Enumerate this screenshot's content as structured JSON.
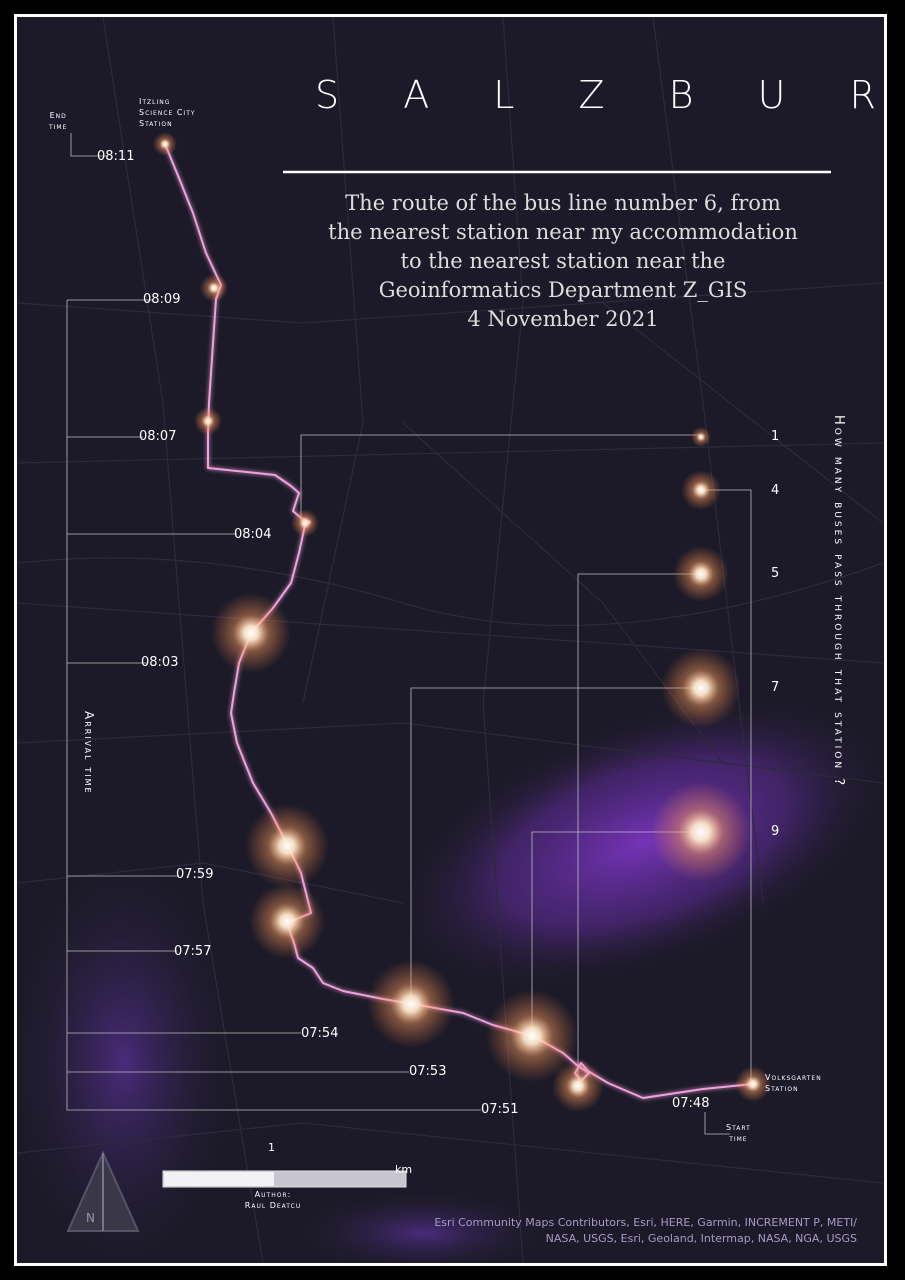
{
  "map": {
    "title": "S A L Z B U R G",
    "subtitle_lines": [
      "The route of  the bus line number 6, from",
      "the nearest station near my accommodation",
      "to the nearest station near the",
      "Geoinformatics Department Z_GIS",
      "4 November 2021"
    ],
    "right_axis_title": "How many buses pass through that station ?",
    "left_axis_title": "Arrival time",
    "end_station": {
      "line1": "Itzling",
      "line2": "Science City",
      "line3": "Station"
    },
    "end_time_label": {
      "line1": "End",
      "line2": "time"
    },
    "start_station": {
      "line1": "Volksgarten",
      "line2": "Station"
    },
    "start_time_label": {
      "line1": "Start",
      "line2": "time"
    },
    "arrival_times": [
      "08:11",
      "08:09",
      "08:07",
      "08:04",
      "08:03",
      "07:59",
      "07:57",
      "07:54",
      "07:53",
      "07:51",
      "07:48"
    ],
    "bus_count_legend": [
      "1",
      "4",
      "5",
      "7",
      "9"
    ],
    "scale_bar": {
      "value": "1",
      "unit": "km"
    },
    "author": {
      "label": "Author:",
      "name": "Raul Deatcu"
    },
    "north_arrow": {
      "letter": "N"
    },
    "credits": [
      "Esri Community Maps Contributors, Esri, HERE, Garmin, INCREMENT P, METI/",
      "NASA, USGS, Esri, Geoland, Intermap, NASA, NGA, USGS"
    ],
    "colors": {
      "route": "#f0a0dc",
      "glow": "#ffc48a",
      "background": "#1c1a28",
      "purple": "#6a2fa8"
    }
  }
}
